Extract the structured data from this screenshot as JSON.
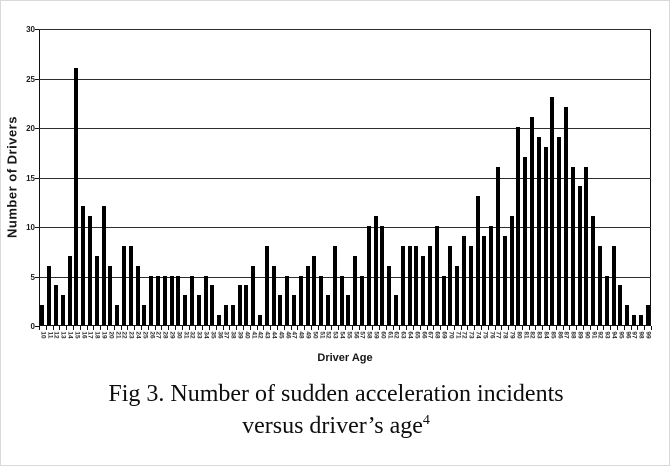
{
  "figure": {
    "caption_line1": "Fig 3.  Number of sudden acceleration incidents",
    "caption_line2": "versus driver’s age",
    "caption_superscript": "4"
  },
  "chart_data": {
    "type": "bar",
    "title": "",
    "xlabel": "Driver Age",
    "ylabel": "Number of Drivers",
    "ylim": [
      0,
      30
    ],
    "yticks": [
      0,
      5,
      10,
      15,
      20,
      25,
      30
    ],
    "grid": true,
    "legend": "none",
    "bar_color": "#000000",
    "categories": [
      "10",
      "11",
      "12",
      "13",
      "14",
      "15",
      "16",
      "17",
      "18",
      "19",
      "20",
      "21",
      "22",
      "23",
      "24",
      "25",
      "26",
      "27",
      "28",
      "29",
      "30",
      "31",
      "32",
      "33",
      "34",
      "35",
      "36",
      "37",
      "38",
      "39",
      "40",
      "41",
      "42",
      "43",
      "44",
      "45",
      "46",
      "47",
      "48",
      "49",
      "50",
      "51",
      "52",
      "53",
      "54",
      "55",
      "56",
      "57",
      "58",
      "59",
      "60",
      "61",
      "62",
      "63",
      "64",
      "65",
      "66",
      "67",
      "68",
      "69",
      "70",
      "71",
      "72",
      "73",
      "74",
      "75",
      "76",
      "77",
      "78",
      "79",
      "80",
      "81",
      "82",
      "83",
      "84",
      "85",
      "86",
      "87",
      "88",
      "89",
      "90",
      "91",
      "92",
      "93",
      "94",
      "95",
      "96",
      "97",
      "98",
      "99"
    ],
    "values": [
      2,
      6,
      4,
      3,
      7,
      26,
      12,
      11,
      7,
      12,
      6,
      2,
      8,
      8,
      6,
      2,
      5,
      5,
      5,
      5,
      5,
      3,
      5,
      3,
      5,
      4,
      1,
      2,
      2,
      4,
      4,
      6,
      1,
      8,
      6,
      3,
      5,
      3,
      5,
      6,
      7,
      5,
      3,
      8,
      5,
      3,
      7,
      5,
      10,
      11,
      10,
      6,
      3,
      8,
      8,
      8,
      7,
      8,
      10,
      5,
      8,
      6,
      9,
      8,
      13,
      9,
      10,
      16,
      9,
      11,
      20,
      17,
      21,
      19,
      18,
      23,
      19,
      22,
      16,
      14,
      16,
      11,
      8,
      5,
      8,
      4,
      2,
      1,
      1,
      2
    ]
  }
}
